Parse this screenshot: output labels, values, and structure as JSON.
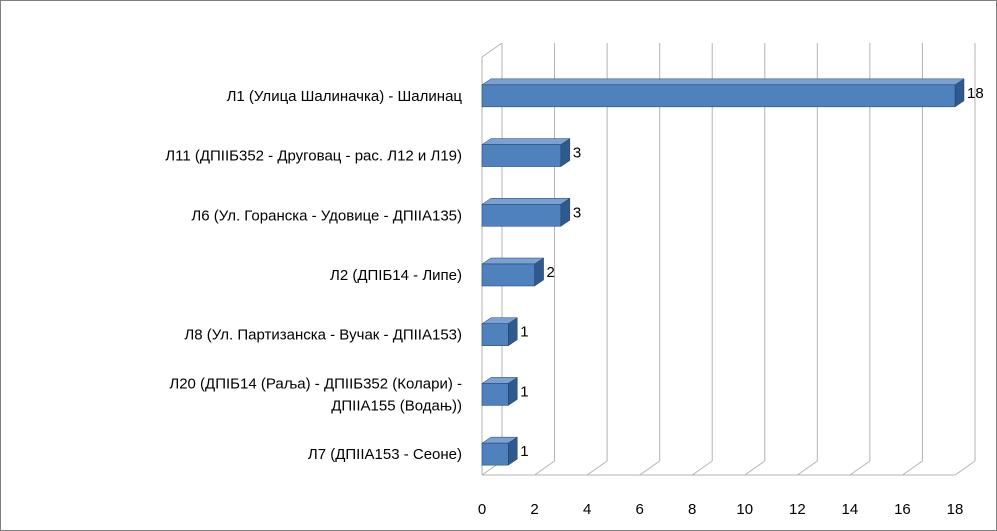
{
  "chart_data": {
    "type": "bar",
    "orientation": "horizontal",
    "style": "3d",
    "categories": [
      [
        "Л1 (Улица Шалиначка) - Шалинац"
      ],
      [
        "Л11 (ДПIIБ352 - Друговац - рас. Л12 и Л19)"
      ],
      [
        "Л6 (Ул. Горанска - Удовице - ДПIIА135)"
      ],
      [
        "Л2 (ДПIБ14 - Липе)"
      ],
      [
        "Л8 (Ул. Партизанска - Вучак - ДПIIА153)"
      ],
      [
        "Л20 (ДПIБ14 (Раља) - ДПIIБ352 (Колари) -",
        "ДПIIА155 (Водањ))"
      ],
      [
        "Л7 (ДПIIА153 - Сеоне)"
      ]
    ],
    "values": [
      18,
      3,
      3,
      2,
      1,
      1,
      1
    ],
    "xlim": [
      0,
      18
    ],
    "xticks": [
      0,
      2,
      4,
      6,
      8,
      10,
      12,
      14,
      16,
      18
    ],
    "grid": true,
    "legend": "none",
    "colors": {
      "bar_front": "#4f81bd",
      "bar_top": "#7ba0d3",
      "bar_side": "#2e5a8f",
      "bar_edge": "#1f3f66",
      "grid": "#b3b3b3",
      "wall": "#ffffff"
    }
  }
}
